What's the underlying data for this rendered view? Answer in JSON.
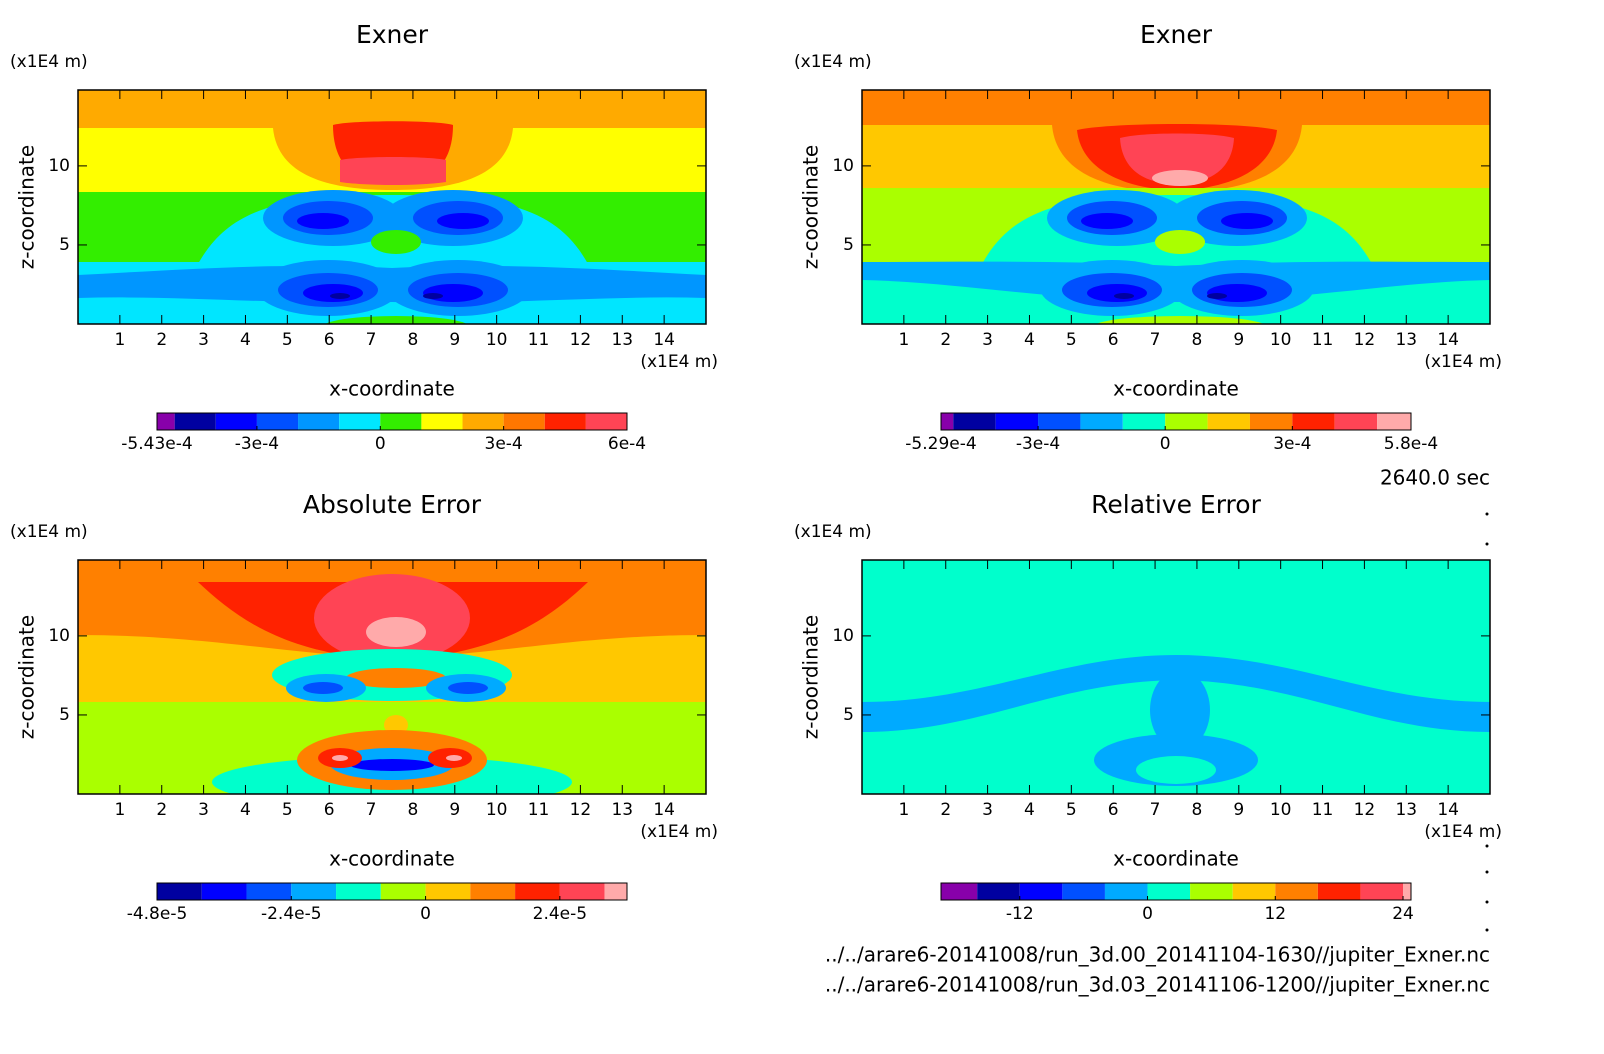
{
  "chart_data": [
    {
      "type": "contour",
      "title": "Exner",
      "x_label": "x-coordinate",
      "y_label": "z-coordinate",
      "x_unit": "(x1E4 m)",
      "y_unit": "(x1E4 m)",
      "xlim": [
        0,
        15
      ],
      "xticks": [
        1,
        2,
        3,
        4,
        5,
        6,
        7,
        8,
        9,
        10,
        11,
        12,
        13,
        14
      ],
      "ylim": [
        0,
        14.8
      ],
      "yticks": [
        5,
        10
      ],
      "colorbar": {
        "levels": [
          -0.000543,
          -0.0005,
          -0.0004,
          -0.0003,
          -0.0002,
          -0.0001,
          0,
          0.0001,
          0.0002,
          0.0003,
          0.0004,
          0.0005,
          0.0006
        ],
        "colors": [
          "#8800aa",
          "#0000a0",
          "#0000ff",
          "#0050ff",
          "#0096ff",
          "#00e6ff",
          "#33ee00",
          "#ffff00",
          "#ffaa00",
          "#ff7700",
          "#ff2200",
          "#ff4455"
        ],
        "ticks": [
          {
            "value": -0.000543,
            "label": "-5.43e-4"
          },
          {
            "value": -0.0003,
            "label": "-3e-4"
          },
          0,
          {
            "value": 0.0003,
            "label": "3e-4"
          },
          {
            "value": 0.0006,
            "label": "6e-4"
          }
        ]
      }
    },
    {
      "type": "contour",
      "title": "Exner",
      "x_label": "x-coordinate",
      "y_label": "z-coordinate",
      "x_unit": "(x1E4 m)",
      "y_unit": "(x1E4 m)",
      "xlim": [
        0,
        15
      ],
      "xticks": [
        1,
        2,
        3,
        4,
        5,
        6,
        7,
        8,
        9,
        10,
        11,
        12,
        13,
        14
      ],
      "ylim": [
        0,
        14.8
      ],
      "yticks": [
        5,
        10
      ],
      "colorbar": {
        "levels": [
          -0.000529,
          -0.0005,
          -0.0004,
          -0.0003,
          -0.0002,
          -0.0001,
          0,
          0.0001,
          0.0002,
          0.0003,
          0.0004,
          0.0005,
          0.00058
        ],
        "colors": [
          "#8800aa",
          "#0000a0",
          "#0000ff",
          "#0050ff",
          "#00aaff",
          "#00ffcc",
          "#aaff00",
          "#ffc800",
          "#ff8000",
          "#ff2200",
          "#ff4455",
          "#ffaaaa"
        ],
        "ticks": [
          {
            "value": -0.000529,
            "label": "-5.29e-4"
          },
          {
            "value": -0.0003,
            "label": "-3e-4"
          },
          0,
          {
            "value": 0.0003,
            "label": "3e-4"
          },
          {
            "value": 0.00058,
            "label": "5.8e-4"
          }
        ]
      }
    },
    {
      "type": "contour",
      "title": "Absolute Error",
      "x_label": "x-coordinate",
      "y_label": "z-coordinate",
      "x_unit": "(x1E4 m)",
      "y_unit": "(x1E4 m)",
      "xlim": [
        0,
        15
      ],
      "xticks": [
        1,
        2,
        3,
        4,
        5,
        6,
        7,
        8,
        9,
        10,
        11,
        12,
        13,
        14
      ],
      "ylim": [
        0,
        14.8
      ],
      "yticks": [
        5,
        10
      ],
      "colorbar": {
        "levels": [
          -4.8e-05,
          -4e-05,
          -3.2e-05,
          -2.4e-05,
          -1.6e-05,
          -8e-06,
          0,
          8e-06,
          1.6e-05,
          2.4e-05,
          3.2e-05,
          3.6e-05
        ],
        "colors": [
          "#0000a0",
          "#0000ff",
          "#0050ff",
          "#00aaff",
          "#00ffcc",
          "#aaff00",
          "#ffc800",
          "#ff8000",
          "#ff2200",
          "#ff4455",
          "#ffaaaa"
        ],
        "ticks": [
          {
            "value": -4.8e-05,
            "label": "-4.8e-5"
          },
          {
            "value": -2.4e-05,
            "label": "-2.4e-5"
          },
          0,
          {
            "value": 2.4e-05,
            "label": "2.4e-5"
          }
        ]
      }
    },
    {
      "type": "contour",
      "title": "Relative Error",
      "x_label": "x-coordinate",
      "y_label": "z-coordinate",
      "x_unit": "(x1E4 m)",
      "y_unit": "(x1E4 m)",
      "xlim": [
        0,
        15
      ],
      "xticks": [
        1,
        2,
        3,
        4,
        5,
        6,
        7,
        8,
        9,
        10,
        11,
        12,
        13,
        14
      ],
      "ylim": [
        0,
        14.8
      ],
      "yticks": [
        5,
        10
      ],
      "colorbar": {
        "levels": [
          -19.4,
          -16,
          -12,
          -8,
          -4,
          0,
          4,
          8,
          12,
          16,
          20,
          24,
          24.75
        ],
        "colors": [
          "#8800aa",
          "#0000a0",
          "#0000ff",
          "#0050ff",
          "#00aaff",
          "#00ffcc",
          "#aaff00",
          "#ffc800",
          "#ff8000",
          "#ff2200",
          "#ff4455",
          "#ffaaaa"
        ],
        "ticks": [
          -12,
          0,
          12,
          24
        ]
      }
    }
  ],
  "time_label": "2640.0 sec",
  "files": [
    "../../arare6-20141008/run_3d.00_20141104-1630//jupiter_Exner.nc",
    "../../arare6-20141008/run_3d.03_20141106-1200//jupiter_Exner.nc"
  ]
}
